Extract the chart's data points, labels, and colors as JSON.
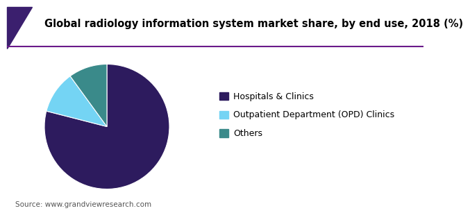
{
  "title": "Global radiology information system market share, by end use, 2018 (%)",
  "title_fontsize": 10.5,
  "title_fontweight": "bold",
  "slices": [
    {
      "label": "Hospitals & Clinics",
      "value": 79,
      "color": "#2d1b5e"
    },
    {
      "label": "Outpatient Department (OPD) Clinics",
      "value": 11,
      "color": "#74d4f4"
    },
    {
      "label": "Others",
      "value": 10,
      "color": "#3a8a8a"
    }
  ],
  "source_text": "Source: www.grandviewresearch.com",
  "background_color": "#ffffff",
  "legend_fontsize": 9,
  "start_angle": 90,
  "header_bg": "#ffffff",
  "header_line_color": "#6a1a8a",
  "header_triangle_color": "#3b1f6e"
}
